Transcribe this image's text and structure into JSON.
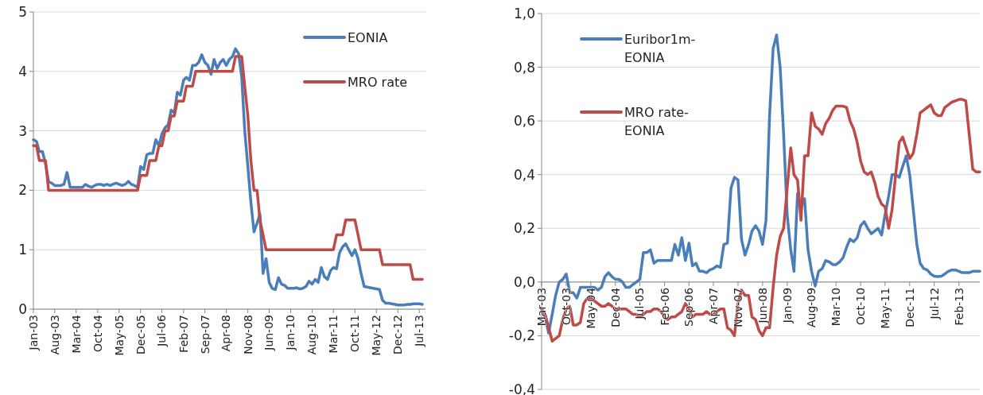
{
  "chart_data": [
    {
      "type": "line",
      "x": [
        "2003-01",
        "2003-02",
        "2003-03",
        "2003-04",
        "2003-05",
        "2003-06",
        "2003-07",
        "2003-08",
        "2003-09",
        "2003-10",
        "2003-11",
        "2003-12",
        "2004-01",
        "2004-02",
        "2004-03",
        "2004-04",
        "2004-05",
        "2004-06",
        "2004-07",
        "2004-08",
        "2004-09",
        "2004-10",
        "2004-11",
        "2004-12",
        "2005-01",
        "2005-02",
        "2005-03",
        "2005-04",
        "2005-05",
        "2005-06",
        "2005-07",
        "2005-08",
        "2005-09",
        "2005-10",
        "2005-11",
        "2005-12",
        "2006-01",
        "2006-02",
        "2006-03",
        "2006-04",
        "2006-05",
        "2006-06",
        "2006-07",
        "2006-08",
        "2006-09",
        "2006-10",
        "2006-11",
        "2006-12",
        "2007-01",
        "2007-02",
        "2007-03",
        "2007-04",
        "2007-05",
        "2007-06",
        "2007-07",
        "2007-08",
        "2007-09",
        "2007-10",
        "2007-11",
        "2007-12",
        "2008-01",
        "2008-02",
        "2008-03",
        "2008-04",
        "2008-05",
        "2008-06",
        "2008-07",
        "2008-08",
        "2008-09",
        "2008-10",
        "2008-11",
        "2008-12",
        "2009-01",
        "2009-02",
        "2009-03",
        "2009-04",
        "2009-05",
        "2009-06",
        "2009-07",
        "2009-08",
        "2009-09",
        "2009-10",
        "2009-11",
        "2009-12",
        "2010-01",
        "2010-02",
        "2010-03",
        "2010-04",
        "2010-05",
        "2010-06",
        "2010-07",
        "2010-08",
        "2010-09",
        "2010-10",
        "2010-11",
        "2010-12",
        "2011-01",
        "2011-02",
        "2011-03",
        "2011-04",
        "2011-05",
        "2011-06",
        "2011-07",
        "2011-08",
        "2011-09",
        "2011-10",
        "2011-11",
        "2011-12",
        "2012-01",
        "2012-02",
        "2012-03",
        "2012-04",
        "2012-05",
        "2012-06",
        "2012-07",
        "2012-08",
        "2012-09",
        "2012-10",
        "2012-11",
        "2012-12",
        "2013-01",
        "2013-02",
        "2013-03",
        "2013-04",
        "2013-05",
        "2013-06",
        "2013-07",
        "2013-08"
      ],
      "series": [
        {
          "name": "EONIA",
          "color": "#4a7ebb",
          "values": [
            2.85,
            2.82,
            2.65,
            2.65,
            2.45,
            2.15,
            2.12,
            2.08,
            2.08,
            2.08,
            2.1,
            2.3,
            2.05,
            2.05,
            2.05,
            2.05,
            2.05,
            2.1,
            2.07,
            2.05,
            2.08,
            2.1,
            2.1,
            2.08,
            2.1,
            2.08,
            2.1,
            2.12,
            2.1,
            2.08,
            2.1,
            2.15,
            2.1,
            2.08,
            2.05,
            2.4,
            2.35,
            2.6,
            2.62,
            2.62,
            2.85,
            2.75,
            2.95,
            3.05,
            3.1,
            3.35,
            3.3,
            3.65,
            3.6,
            3.85,
            3.9,
            3.85,
            4.1,
            4.1,
            4.15,
            4.28,
            4.15,
            4.1,
            3.95,
            4.2,
            4.05,
            4.15,
            4.2,
            4.1,
            4.2,
            4.25,
            4.38,
            4.3,
            3.9,
            3.0,
            2.4,
            1.8,
            1.3,
            1.45,
            1.6,
            0.6,
            0.85,
            0.45,
            0.35,
            0.33,
            0.53,
            0.42,
            0.4,
            0.35,
            0.35,
            0.35,
            0.36,
            0.34,
            0.35,
            0.38,
            0.47,
            0.42,
            0.5,
            0.45,
            0.7,
            0.55,
            0.5,
            0.65,
            0.7,
            0.68,
            0.95,
            1.05,
            1.1,
            1.0,
            0.9,
            1.0,
            0.85,
            0.6,
            0.38,
            0.37,
            0.36,
            0.35,
            0.34,
            0.33,
            0.15,
            0.1,
            0.1,
            0.09,
            0.08,
            0.07,
            0.07,
            0.07,
            0.08,
            0.08,
            0.09,
            0.09,
            0.09,
            0.08
          ]
        },
        {
          "name": "MRO rate",
          "color": "#be4b48",
          "values": [
            2.75,
            2.75,
            2.5,
            2.5,
            2.5,
            2.0,
            2.0,
            2.0,
            2.0,
            2.0,
            2.0,
            2.0,
            2.0,
            2.0,
            2.0,
            2.0,
            2.0,
            2.0,
            2.0,
            2.0,
            2.0,
            2.0,
            2.0,
            2.0,
            2.0,
            2.0,
            2.0,
            2.0,
            2.0,
            2.0,
            2.0,
            2.0,
            2.0,
            2.0,
            2.0,
            2.25,
            2.25,
            2.25,
            2.5,
            2.5,
            2.5,
            2.75,
            2.75,
            3.0,
            3.0,
            3.25,
            3.25,
            3.5,
            3.5,
            3.5,
            3.75,
            3.75,
            3.75,
            4.0,
            4.0,
            4.0,
            4.0,
            4.0,
            4.0,
            4.0,
            4.0,
            4.0,
            4.0,
            4.0,
            4.0,
            4.0,
            4.25,
            4.25,
            4.25,
            3.75,
            3.25,
            2.5,
            2.0,
            2.0,
            1.5,
            1.25,
            1.0,
            1.0,
            1.0,
            1.0,
            1.0,
            1.0,
            1.0,
            1.0,
            1.0,
            1.0,
            1.0,
            1.0,
            1.0,
            1.0,
            1.0,
            1.0,
            1.0,
            1.0,
            1.0,
            1.0,
            1.0,
            1.0,
            1.0,
            1.25,
            1.25,
            1.25,
            1.5,
            1.5,
            1.5,
            1.5,
            1.25,
            1.0,
            1.0,
            1.0,
            1.0,
            1.0,
            1.0,
            1.0,
            0.75,
            0.75,
            0.75,
            0.75,
            0.75,
            0.75,
            0.75,
            0.75,
            0.75,
            0.75,
            0.5,
            0.5,
            0.5,
            0.5
          ]
        }
      ],
      "xlim": [
        "2003-01",
        "2013-09"
      ],
      "xticks": [
        {
          "value": "2003-01",
          "label": "Jan-03"
        },
        {
          "value": "2003-08",
          "label": "Aug-03"
        },
        {
          "value": "2004-03",
          "label": "Mar-04"
        },
        {
          "value": "2004-10",
          "label": "Oct-04"
        },
        {
          "value": "2005-05",
          "label": "May-05"
        },
        {
          "value": "2005-12",
          "label": "Dec-05"
        },
        {
          "value": "2006-07",
          "label": "Jul-06"
        },
        {
          "value": "2007-02",
          "label": "Feb-07"
        },
        {
          "value": "2007-09",
          "label": "Sep-07"
        },
        {
          "value": "2008-04",
          "label": "Apr-08"
        },
        {
          "value": "2008-11",
          "label": "Nov-08"
        },
        {
          "value": "2009-06",
          "label": "Jun-09"
        },
        {
          "value": "2010-01",
          "label": "Jan-10"
        },
        {
          "value": "2010-08",
          "label": "Aug-10"
        },
        {
          "value": "2011-03",
          "label": "Mar-11"
        },
        {
          "value": "2011-10",
          "label": "Oct-11"
        },
        {
          "value": "2012-05",
          "label": "May-12"
        },
        {
          "value": "2012-12",
          "label": "Dec-12"
        },
        {
          "value": "2013-07",
          "label": "Jul-13"
        }
      ],
      "ylim": [
        0,
        5
      ],
      "yticks": [
        0,
        1,
        2,
        3,
        4,
        5
      ],
      "grid": "y",
      "legend": "top right"
    },
    {
      "type": "line",
      "x": [
        "2003-03",
        "2003-04",
        "2003-05",
        "2003-06",
        "2003-07",
        "2003-08",
        "2003-09",
        "2003-10",
        "2003-11",
        "2003-12",
        "2004-01",
        "2004-02",
        "2004-03",
        "2004-04",
        "2004-05",
        "2004-06",
        "2004-07",
        "2004-08",
        "2004-09",
        "2004-10",
        "2004-11",
        "2004-12",
        "2005-01",
        "2005-02",
        "2005-03",
        "2005-04",
        "2005-05",
        "2005-06",
        "2005-07",
        "2005-08",
        "2005-09",
        "2005-10",
        "2005-11",
        "2005-12",
        "2006-01",
        "2006-02",
        "2006-03",
        "2006-04",
        "2006-05",
        "2006-06",
        "2006-07",
        "2006-08",
        "2006-09",
        "2006-10",
        "2006-11",
        "2006-12",
        "2007-01",
        "2007-02",
        "2007-03",
        "2007-04",
        "2007-05",
        "2007-06",
        "2007-07",
        "2007-08",
        "2007-09",
        "2007-10",
        "2007-11",
        "2007-12",
        "2008-01",
        "2008-02",
        "2008-03",
        "2008-04",
        "2008-05",
        "2008-06",
        "2008-07",
        "2008-08",
        "2008-09",
        "2008-10",
        "2008-11",
        "2008-12",
        "2009-01",
        "2009-02",
        "2009-03",
        "2009-04",
        "2009-05",
        "2009-06",
        "2009-07",
        "2009-08",
        "2009-09",
        "2009-10",
        "2009-11",
        "2009-12",
        "2010-01",
        "2010-02",
        "2010-03",
        "2010-04",
        "2010-05",
        "2010-06",
        "2010-07",
        "2010-08",
        "2010-09",
        "2010-10",
        "2010-11",
        "2010-12",
        "2011-01",
        "2011-02",
        "2011-03",
        "2011-04",
        "2011-05",
        "2011-06",
        "2011-07",
        "2011-08",
        "2011-09",
        "2011-10",
        "2011-11",
        "2011-12",
        "2012-01",
        "2012-02",
        "2012-03",
        "2012-04",
        "2012-05",
        "2012-06",
        "2012-07",
        "2012-08",
        "2012-09",
        "2012-10",
        "2012-11",
        "2012-12",
        "2013-01",
        "2013-02",
        "2013-03",
        "2013-04",
        "2013-05",
        "2013-06",
        "2013-07",
        "2013-08"
      ],
      "series": [
        {
          "name": "Euribor1m-EONIA",
          "color": "#4a7ebb",
          "values": [
            -0.1,
            -0.13,
            -0.19,
            -0.12,
            -0.05,
            0.0,
            0.01,
            0.03,
            -0.04,
            -0.04,
            -0.06,
            -0.02,
            -0.02,
            -0.02,
            -0.02,
            -0.02,
            -0.03,
            -0.02,
            0.02,
            0.035,
            0.02,
            0.01,
            0.01,
            0.0,
            -0.02,
            -0.02,
            -0.01,
            0.0,
            0.01,
            0.11,
            0.11,
            0.12,
            0.07,
            0.08,
            0.08,
            0.08,
            0.08,
            0.08,
            0.14,
            0.1,
            0.165,
            0.08,
            0.145,
            0.06,
            0.07,
            0.04,
            0.04,
            0.035,
            0.045,
            0.05,
            0.06,
            0.055,
            0.14,
            0.145,
            0.35,
            0.39,
            0.38,
            0.16,
            0.1,
            0.14,
            0.19,
            0.21,
            0.19,
            0.14,
            0.23,
            0.62,
            0.87,
            0.92,
            0.8,
            0.55,
            0.25,
            0.12,
            0.04,
            0.33,
            0.28,
            0.31,
            0.12,
            0.04,
            -0.015,
            0.04,
            0.05,
            0.08,
            0.075,
            0.065,
            0.065,
            0.075,
            0.09,
            0.13,
            0.16,
            0.15,
            0.165,
            0.21,
            0.225,
            0.2,
            0.18,
            0.19,
            0.2,
            0.175,
            0.25,
            0.32,
            0.4,
            0.4,
            0.39,
            0.43,
            0.47,
            0.4,
            0.27,
            0.14,
            0.07,
            0.05,
            0.045,
            0.03,
            0.022,
            0.02,
            0.022,
            0.03,
            0.04,
            0.045,
            0.045,
            0.04,
            0.035,
            0.035,
            0.035,
            0.04,
            0.04,
            0.04
          ]
        },
        {
          "name": "MRO rate-EONIA",
          "color": "#be4b48",
          "values": [
            -0.1,
            -0.12,
            -0.17,
            -0.22,
            -0.21,
            -0.2,
            -0.14,
            -0.1,
            -0.09,
            -0.16,
            -0.16,
            -0.15,
            -0.08,
            -0.06,
            -0.06,
            -0.07,
            -0.08,
            -0.09,
            -0.09,
            -0.08,
            -0.09,
            -0.1,
            -0.1,
            -0.1,
            -0.1,
            -0.11,
            -0.12,
            -0.12,
            -0.13,
            -0.12,
            -0.11,
            -0.11,
            -0.1,
            -0.1,
            -0.11,
            -0.13,
            -0.14,
            -0.13,
            -0.13,
            -0.12,
            -0.11,
            -0.08,
            -0.1,
            -0.13,
            -0.12,
            -0.12,
            -0.12,
            -0.11,
            -0.12,
            -0.12,
            -0.11,
            -0.1,
            -0.1,
            -0.17,
            -0.18,
            -0.2,
            -0.08,
            -0.03,
            -0.05,
            -0.05,
            -0.13,
            -0.14,
            -0.18,
            -0.2,
            -0.17,
            -0.17,
            -0.02,
            0.1,
            0.17,
            0.2,
            0.35,
            0.5,
            0.4,
            0.38,
            0.23,
            0.47,
            0.47,
            0.63,
            0.58,
            0.57,
            0.55,
            0.59,
            0.61,
            0.64,
            0.655,
            0.655,
            0.655,
            0.65,
            0.6,
            0.57,
            0.52,
            0.45,
            0.41,
            0.4,
            0.41,
            0.37,
            0.32,
            0.29,
            0.28,
            0.2,
            0.27,
            0.4,
            0.52,
            0.54,
            0.5,
            0.46,
            0.48,
            0.55,
            0.63,
            0.64,
            0.65,
            0.66,
            0.63,
            0.62,
            0.62,
            0.65,
            0.66,
            0.67,
            0.675,
            0.68,
            0.68,
            0.675,
            0.55,
            0.42,
            0.41,
            0.41
          ]
        }
      ],
      "xlim": [
        "2003-03",
        "2013-08"
      ],
      "xticks": [
        {
          "value": "2003-03",
          "label": "Mar-03"
        },
        {
          "value": "2003-10",
          "label": "Oct-03"
        },
        {
          "value": "2004-05",
          "label": "May-04"
        },
        {
          "value": "2004-12",
          "label": "Dec-04"
        },
        {
          "value": "2005-07",
          "label": "Jul-05"
        },
        {
          "value": "2006-02",
          "label": "Feb-06"
        },
        {
          "value": "2006-09",
          "label": "Sep-06"
        },
        {
          "value": "2007-04",
          "label": "Apr-07"
        },
        {
          "value": "2007-11",
          "label": "Nov-07"
        },
        {
          "value": "2008-06",
          "label": "Jun-08"
        },
        {
          "value": "2009-01",
          "label": "Jan-09"
        },
        {
          "value": "2009-08",
          "label": "Aug-09"
        },
        {
          "value": "2010-03",
          "label": "Mar-10"
        },
        {
          "value": "2010-10",
          "label": "Oct-10"
        },
        {
          "value": "2011-05",
          "label": "May-11"
        },
        {
          "value": "2011-12",
          "label": "Dec-11"
        },
        {
          "value": "2012-07",
          "label": "Jul-12"
        },
        {
          "value": "2013-02",
          "label": "Feb-13"
        }
      ],
      "ylim": [
        -0.4,
        1.0
      ],
      "yticks": [
        {
          "value": -0.4,
          "label": "-0,4"
        },
        {
          "value": -0.2,
          "label": "-0,2"
        },
        {
          "value": 0,
          "label": "0,0"
        },
        {
          "value": 0.2,
          "label": "0,2"
        },
        {
          "value": 0.4,
          "label": "0,4"
        },
        {
          "value": 0.6,
          "label": "0,6"
        },
        {
          "value": 0.8,
          "label": "0,8"
        },
        {
          "value": 1.0,
          "label": "1,0"
        }
      ],
      "grid": "y",
      "legend": "top left"
    }
  ]
}
